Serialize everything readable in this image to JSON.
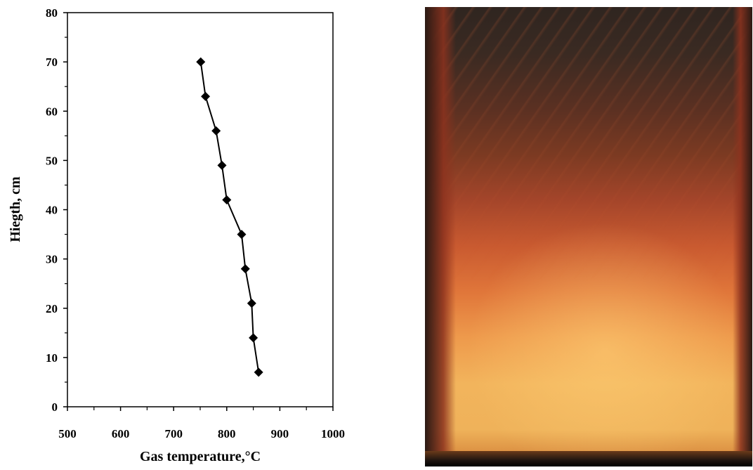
{
  "chart_data": {
    "type": "line",
    "title": "",
    "xlabel": "Gas temperature,°C",
    "ylabel": "Hiegth, cm",
    "xlim": [
      500,
      1000
    ],
    "ylim": [
      0,
      80
    ],
    "x_ticks": [
      500,
      600,
      700,
      800,
      900,
      1000
    ],
    "y_ticks": [
      0,
      10,
      20,
      30,
      40,
      50,
      60,
      70,
      80
    ],
    "x_tick_labels": [
      "500",
      "600",
      "700",
      "800",
      "900",
      "1000"
    ],
    "y_tick_labels": [
      "0",
      "10",
      "20",
      "30",
      "40",
      "50",
      "60",
      "70",
      "80"
    ],
    "grid": false,
    "marker": "diamond",
    "line_color": "#000000",
    "series": [
      {
        "points": [
          {
            "x": 860,
            "y": 7
          },
          {
            "x": 850,
            "y": 14
          },
          {
            "x": 847,
            "y": 21
          },
          {
            "x": 835,
            "y": 28
          },
          {
            "x": 828,
            "y": 35
          },
          {
            "x": 800,
            "y": 42
          },
          {
            "x": 791,
            "y": 49
          },
          {
            "x": 780,
            "y": 56
          },
          {
            "x": 760,
            "y": 63
          },
          {
            "x": 751,
            "y": 70
          }
        ]
      }
    ]
  },
  "photo": {
    "subject": "flame",
    "colors": [
      "#2f2520",
      "#a4452a",
      "#e0763a",
      "#f2b45c"
    ]
  }
}
